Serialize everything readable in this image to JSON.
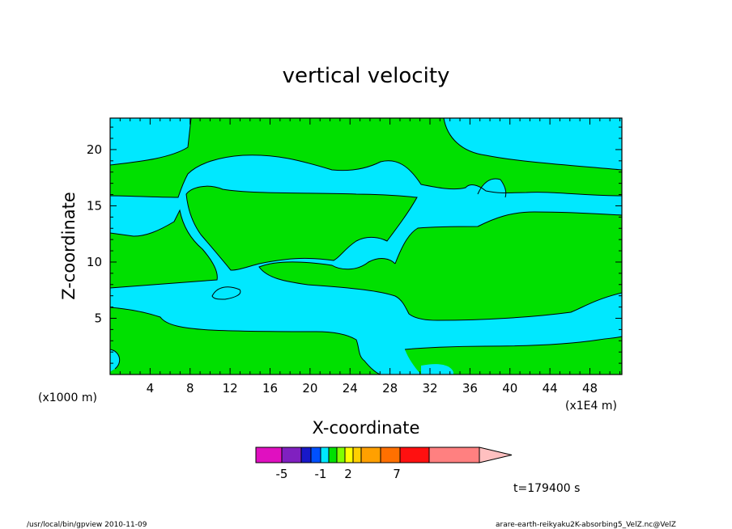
{
  "chart_data": {
    "type": "heatmap",
    "title": "vertical velocity",
    "xlabel": "X-coordinate",
    "ylabel": "Z-coordinate",
    "x_unit_left": "(x1000 m)",
    "x_unit_right": "(x1E4 m)",
    "xlim": [
      0,
      51.2
    ],
    "ylim": [
      0,
      22.8
    ],
    "x_ticks": [
      "4",
      "8",
      "12",
      "16",
      "20",
      "24",
      "28",
      "32",
      "36",
      "40",
      "44",
      "48"
    ],
    "y_ticks": [
      "5",
      "10",
      "15",
      "20"
    ],
    "colorbar": {
      "labels": [
        {
          "text": "-5",
          "value": -5
        },
        {
          "text": "-1",
          "value": -1
        },
        {
          "text": "2",
          "value": 2
        },
        {
          "text": "7",
          "value": 7
        }
      ],
      "colors": [
        "#e010c0",
        "#8020c0",
        "#1818c8",
        "#0050ff",
        "#00e8ff",
        "#00e000",
        "#80ff00",
        "#ffff00",
        "#ffd000",
        "#ffa000",
        "#ff7000",
        "#ff1010",
        "#ff8080",
        "#ffc0c0"
      ]
    },
    "fill_colors": {
      "cyan": "#00e8ff",
      "green": "#00e000"
    },
    "time_label": "t=179400 s"
  },
  "footer": {
    "left": "/usr/local/bin/gpview  2010-11-09",
    "right": "arare-earth-reikyaku2K-absorbing5_VelZ.nc@VelZ"
  }
}
